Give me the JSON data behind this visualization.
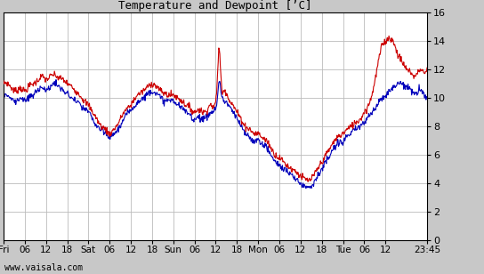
{
  "title": "Temperature and Dewpoint [’C]",
  "ylim": [
    0,
    16
  ],
  "yticks": [
    0,
    2,
    4,
    6,
    8,
    10,
    12,
    14,
    16
  ],
  "temp_color": "#cc0000",
  "dewpoint_color": "#0000bb",
  "bg_color": "#c8c8c8",
  "plot_bg_color": "#ffffff",
  "grid_color": "#bbbbbb",
  "watermark": "www.vaisala.com",
  "line_width": 0.8,
  "n_points": 800,
  "total_days": 4.989583,
  "xtick_positions": [
    0.0,
    0.25,
    0.5,
    0.75,
    1.0,
    1.25,
    1.5,
    1.75,
    2.0,
    2.25,
    2.5,
    2.75,
    3.0,
    3.25,
    3.5,
    3.75,
    4.0,
    4.25,
    4.5,
    4.989583
  ],
  "xtick_labels": [
    "Fri",
    "06",
    "12",
    "18",
    "Sat",
    "06",
    "12",
    "18",
    "Sun",
    "06",
    "12",
    "18",
    "Mon",
    "06",
    "12",
    "18",
    "Tue",
    "06",
    "12",
    "23:45"
  ],
  "temp_keypoints": [
    [
      0.0,
      11.0
    ],
    [
      0.08,
      10.8
    ],
    [
      0.15,
      10.5
    ],
    [
      0.2,
      10.7
    ],
    [
      0.25,
      10.5
    ],
    [
      0.3,
      10.8
    ],
    [
      0.35,
      11.0
    ],
    [
      0.4,
      11.2
    ],
    [
      0.45,
      11.5
    ],
    [
      0.5,
      11.3
    ],
    [
      0.55,
      11.5
    ],
    [
      0.6,
      11.6
    ],
    [
      0.65,
      11.4
    ],
    [
      0.7,
      11.3
    ],
    [
      0.75,
      11.0
    ],
    [
      0.8,
      10.8
    ],
    [
      0.85,
      10.5
    ],
    [
      0.9,
      10.2
    ],
    [
      0.95,
      9.8
    ],
    [
      1.0,
      9.5
    ],
    [
      1.05,
      9.0
    ],
    [
      1.1,
      8.5
    ],
    [
      1.15,
      8.0
    ],
    [
      1.2,
      7.8
    ],
    [
      1.25,
      7.5
    ],
    [
      1.3,
      7.8
    ],
    [
      1.35,
      8.2
    ],
    [
      1.4,
      8.8
    ],
    [
      1.45,
      9.2
    ],
    [
      1.5,
      9.5
    ],
    [
      1.55,
      10.0
    ],
    [
      1.6,
      10.3
    ],
    [
      1.65,
      10.5
    ],
    [
      1.7,
      10.8
    ],
    [
      1.75,
      11.0
    ],
    [
      1.8,
      10.8
    ],
    [
      1.85,
      10.5
    ],
    [
      1.9,
      10.3
    ],
    [
      1.95,
      10.2
    ],
    [
      2.0,
      10.2
    ],
    [
      2.05,
      10.0
    ],
    [
      2.1,
      9.8
    ],
    [
      2.15,
      9.5
    ],
    [
      2.2,
      9.3
    ],
    [
      2.25,
      9.0
    ],
    [
      2.3,
      9.2
    ],
    [
      2.35,
      9.0
    ],
    [
      2.4,
      9.2
    ],
    [
      2.45,
      9.5
    ],
    [
      2.5,
      9.8
    ],
    [
      2.52,
      11.5
    ],
    [
      2.54,
      13.5
    ],
    [
      2.56,
      11.5
    ],
    [
      2.6,
      10.5
    ],
    [
      2.65,
      10.0
    ],
    [
      2.7,
      9.5
    ],
    [
      2.75,
      9.0
    ],
    [
      2.8,
      8.5
    ],
    [
      2.85,
      8.0
    ],
    [
      2.9,
      7.8
    ],
    [
      2.95,
      7.5
    ],
    [
      3.0,
      7.5
    ],
    [
      3.05,
      7.2
    ],
    [
      3.1,
      7.0
    ],
    [
      3.15,
      6.5
    ],
    [
      3.2,
      6.0
    ],
    [
      3.25,
      5.8
    ],
    [
      3.3,
      5.5
    ],
    [
      3.35,
      5.2
    ],
    [
      3.4,
      5.0
    ],
    [
      3.45,
      4.8
    ],
    [
      3.5,
      4.5
    ],
    [
      3.55,
      4.3
    ],
    [
      3.6,
      4.2
    ],
    [
      3.65,
      4.5
    ],
    [
      3.7,
      5.0
    ],
    [
      3.75,
      5.5
    ],
    [
      3.8,
      6.0
    ],
    [
      3.85,
      6.5
    ],
    [
      3.9,
      7.0
    ],
    [
      3.95,
      7.3
    ],
    [
      4.0,
      7.5
    ],
    [
      4.05,
      7.8
    ],
    [
      4.1,
      8.0
    ],
    [
      4.15,
      8.3
    ],
    [
      4.2,
      8.5
    ],
    [
      4.25,
      9.0
    ],
    [
      4.3,
      9.5
    ],
    [
      4.35,
      10.5
    ],
    [
      4.4,
      12.0
    ],
    [
      4.45,
      13.5
    ],
    [
      4.5,
      14.0
    ],
    [
      4.55,
      14.2
    ],
    [
      4.6,
      13.8
    ],
    [
      4.65,
      13.0
    ],
    [
      4.7,
      12.5
    ],
    [
      4.75,
      12.0
    ],
    [
      4.8,
      11.8
    ],
    [
      4.85,
      11.5
    ],
    [
      4.9,
      12.0
    ],
    [
      4.95,
      11.8
    ],
    [
      4.989,
      12.0
    ]
  ],
  "dew_keypoints": [
    [
      0.0,
      10.2
    ],
    [
      0.08,
      10.0
    ],
    [
      0.15,
      9.8
    ],
    [
      0.2,
      10.0
    ],
    [
      0.25,
      9.8
    ],
    [
      0.3,
      10.0
    ],
    [
      0.35,
      10.2
    ],
    [
      0.4,
      10.5
    ],
    [
      0.45,
      10.8
    ],
    [
      0.5,
      10.5
    ],
    [
      0.55,
      10.8
    ],
    [
      0.6,
      11.0
    ],
    [
      0.65,
      10.8
    ],
    [
      0.7,
      10.5
    ],
    [
      0.75,
      10.3
    ],
    [
      0.8,
      10.0
    ],
    [
      0.85,
      9.8
    ],
    [
      0.9,
      9.5
    ],
    [
      0.95,
      9.2
    ],
    [
      1.0,
      9.0
    ],
    [
      1.05,
      8.5
    ],
    [
      1.1,
      8.0
    ],
    [
      1.15,
      7.7
    ],
    [
      1.2,
      7.5
    ],
    [
      1.25,
      7.2
    ],
    [
      1.3,
      7.5
    ],
    [
      1.35,
      7.8
    ],
    [
      1.4,
      8.3
    ],
    [
      1.45,
      8.8
    ],
    [
      1.5,
      9.2
    ],
    [
      1.55,
      9.5
    ],
    [
      1.6,
      9.8
    ],
    [
      1.65,
      10.0
    ],
    [
      1.7,
      10.3
    ],
    [
      1.75,
      10.5
    ],
    [
      1.8,
      10.3
    ],
    [
      1.85,
      10.0
    ],
    [
      1.9,
      9.8
    ],
    [
      1.95,
      9.8
    ],
    [
      2.0,
      9.8
    ],
    [
      2.05,
      9.5
    ],
    [
      2.1,
      9.3
    ],
    [
      2.15,
      9.0
    ],
    [
      2.2,
      8.8
    ],
    [
      2.25,
      8.5
    ],
    [
      2.3,
      8.7
    ],
    [
      2.35,
      8.5
    ],
    [
      2.4,
      8.7
    ],
    [
      2.45,
      9.0
    ],
    [
      2.5,
      9.3
    ],
    [
      2.52,
      10.0
    ],
    [
      2.54,
      11.2
    ],
    [
      2.56,
      10.5
    ],
    [
      2.6,
      9.8
    ],
    [
      2.65,
      9.5
    ],
    [
      2.7,
      9.0
    ],
    [
      2.75,
      8.5
    ],
    [
      2.8,
      8.0
    ],
    [
      2.85,
      7.5
    ],
    [
      2.9,
      7.2
    ],
    [
      2.95,
      7.0
    ],
    [
      3.0,
      7.0
    ],
    [
      3.05,
      6.8
    ],
    [
      3.1,
      6.5
    ],
    [
      3.15,
      6.0
    ],
    [
      3.2,
      5.5
    ],
    [
      3.25,
      5.3
    ],
    [
      3.3,
      5.0
    ],
    [
      3.35,
      4.8
    ],
    [
      3.4,
      4.5
    ],
    [
      3.45,
      4.3
    ],
    [
      3.5,
      4.0
    ],
    [
      3.55,
      3.8
    ],
    [
      3.6,
      3.8
    ],
    [
      3.65,
      4.0
    ],
    [
      3.7,
      4.5
    ],
    [
      3.75,
      5.0
    ],
    [
      3.8,
      5.5
    ],
    [
      3.85,
      6.0
    ],
    [
      3.9,
      6.5
    ],
    [
      3.95,
      6.8
    ],
    [
      4.0,
      7.0
    ],
    [
      4.05,
      7.3
    ],
    [
      4.1,
      7.5
    ],
    [
      4.15,
      7.8
    ],
    [
      4.2,
      8.0
    ],
    [
      4.25,
      8.3
    ],
    [
      4.3,
      8.7
    ],
    [
      4.35,
      9.0
    ],
    [
      4.4,
      9.5
    ],
    [
      4.45,
      10.0
    ],
    [
      4.5,
      10.2
    ],
    [
      4.55,
      10.5
    ],
    [
      4.6,
      10.8
    ],
    [
      4.65,
      11.0
    ],
    [
      4.7,
      11.0
    ],
    [
      4.75,
      10.8
    ],
    [
      4.8,
      10.5
    ],
    [
      4.85,
      10.3
    ],
    [
      4.9,
      10.5
    ],
    [
      4.95,
      10.3
    ],
    [
      4.989,
      10.0
    ]
  ]
}
